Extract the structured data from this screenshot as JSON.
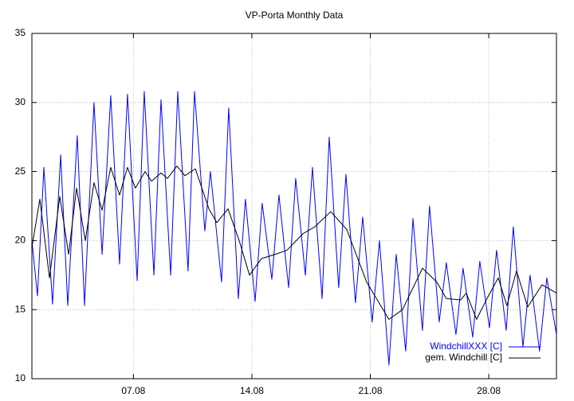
{
  "chart_data": {
    "type": "line",
    "title": "VP-Porta Monthly Data",
    "xlim": [
      1,
      32
    ],
    "ylim": [
      10,
      35
    ],
    "xticks": [
      {
        "value": 7,
        "label": "07.08"
      },
      {
        "value": 14,
        "label": "14.08"
      },
      {
        "value": 21,
        "label": "21.08"
      },
      {
        "value": 28,
        "label": "28.08"
      }
    ],
    "yticks": [
      10,
      15,
      20,
      25,
      30,
      35
    ],
    "grid": true,
    "legend": "bottom-right",
    "series": [
      {
        "name": "WindchillXXX [C]",
        "color": "#0000ff",
        "x": [
          1.0,
          1.33,
          1.71,
          2.22,
          2.7,
          3.12,
          3.68,
          4.11,
          4.67,
          5.15,
          5.66,
          6.18,
          6.65,
          7.22,
          7.64,
          8.21,
          8.63,
          9.2,
          9.62,
          10.23,
          10.61,
          11.22,
          11.55,
          12.21,
          12.63,
          13.2,
          13.62,
          14.19,
          14.61,
          15.18,
          15.6,
          16.17,
          16.59,
          17.16,
          17.58,
          18.15,
          18.57,
          19.13,
          19.56,
          20.12,
          20.55,
          21.11,
          21.54,
          22.1,
          22.53,
          23.09,
          23.52,
          24.08,
          24.5,
          25.07,
          25.49,
          26.06,
          26.48,
          27.05,
          27.47,
          28.04,
          28.46,
          29.03,
          29.45,
          30.02,
          30.44,
          31.0,
          31.43,
          32.0
        ],
        "values": [
          20.0,
          16.0,
          25.3,
          15.4,
          26.2,
          15.3,
          27.6,
          15.3,
          30.0,
          19.0,
          30.5,
          18.3,
          30.6,
          17.1,
          30.8,
          17.5,
          30.2,
          17.5,
          30.8,
          17.8,
          30.8,
          20.7,
          25.0,
          17.0,
          29.6,
          15.8,
          23.0,
          15.6,
          22.7,
          17.2,
          23.3,
          16.6,
          24.5,
          17.5,
          25.3,
          15.8,
          27.5,
          16.6,
          24.8,
          15.5,
          21.7,
          14.1,
          20.0,
          11.0,
          19.0,
          12.0,
          21.6,
          13.5,
          22.5,
          14.1,
          18.4,
          13.2,
          18.0,
          13.0,
          18.5,
          13.7,
          19.3,
          13.5,
          21.0,
          12.3,
          17.5,
          12.0,
          17.3,
          13.2
        ]
      },
      {
        "name": "gem. Windchill [C]",
        "color": "#000000",
        "x": [
          1.0,
          1.47,
          2.04,
          2.65,
          3.17,
          3.64,
          4.16,
          4.67,
          5.15,
          5.66,
          6.18,
          6.65,
          7.12,
          7.69,
          8.07,
          8.63,
          9.01,
          9.57,
          10.04,
          10.66,
          11.46,
          11.93,
          12.59,
          13.25,
          13.86,
          14.57,
          15.37,
          16.07,
          17.02,
          17.72,
          18.66,
          19.61,
          20.78,
          22.1,
          22.9,
          24.08,
          24.93,
          25.49,
          26.34,
          26.67,
          27.28,
          27.85,
          28.56,
          29.07,
          29.64,
          30.3,
          31.15,
          32.0
        ],
        "values": [
          19.5,
          23.0,
          17.3,
          23.2,
          19.0,
          23.8,
          20.0,
          24.2,
          22.2,
          25.3,
          23.3,
          25.3,
          23.8,
          25.0,
          24.3,
          24.9,
          24.5,
          25.4,
          24.7,
          25.2,
          22.3,
          21.3,
          22.3,
          20.0,
          17.5,
          18.7,
          19.0,
          19.3,
          20.5,
          21.0,
          22.1,
          20.8,
          17.0,
          14.3,
          15.0,
          18.0,
          17.0,
          15.8,
          15.7,
          16.2,
          14.3,
          15.7,
          17.3,
          15.3,
          17.8,
          15.2,
          16.8,
          16.2
        ]
      }
    ]
  }
}
